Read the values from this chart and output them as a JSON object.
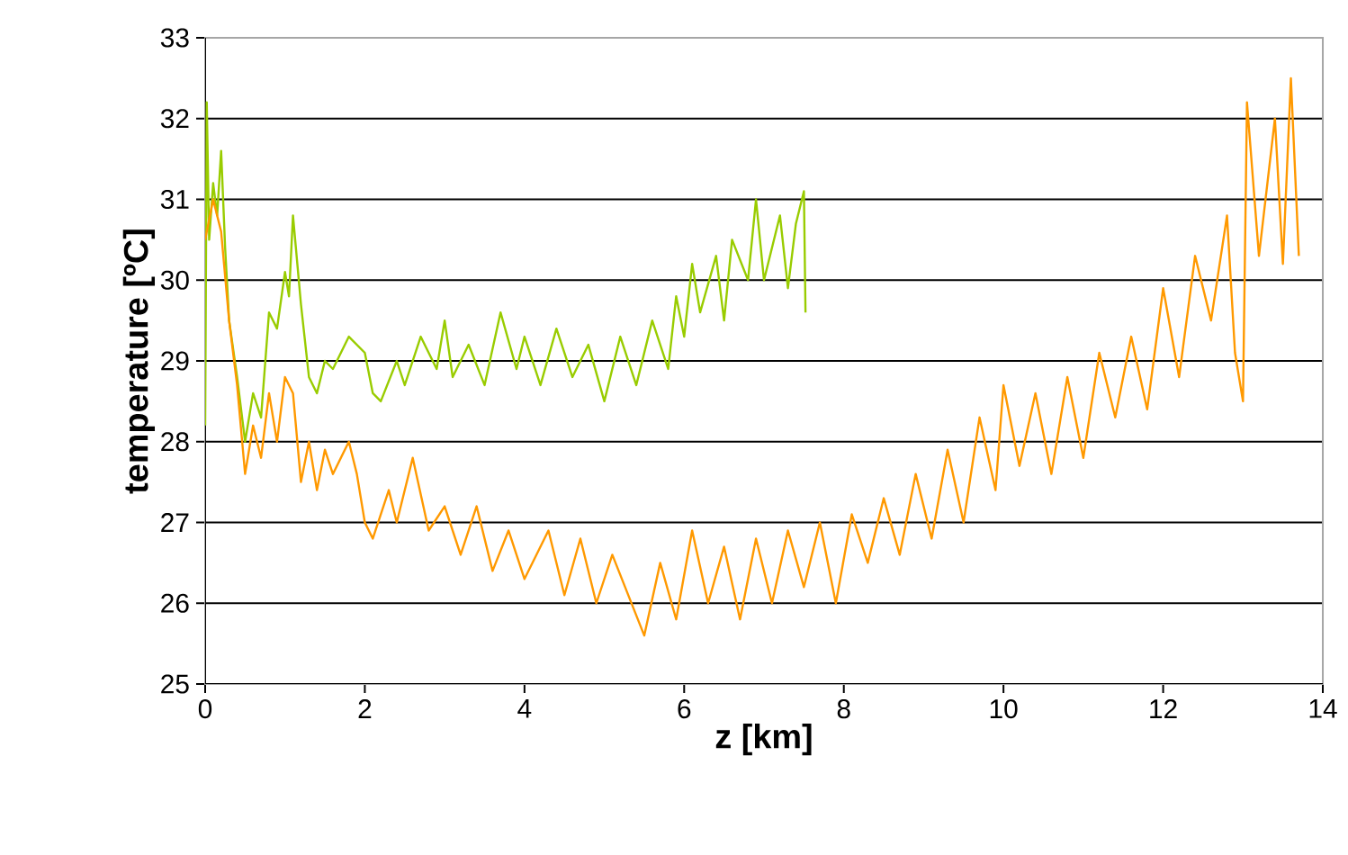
{
  "chart_data": {
    "type": "line",
    "xlabel": "z [km]",
    "ylabel": "temperature [ºC]",
    "xlim": [
      0,
      14
    ],
    "xticks": [
      0,
      2,
      4,
      6,
      8,
      10,
      12,
      14
    ],
    "ylim": [
      25,
      33
    ],
    "yticks": [
      25,
      26,
      27,
      28,
      29,
      30,
      31,
      32,
      33
    ],
    "grid": "y",
    "marker": "none",
    "line_style": "solid",
    "series": [
      {
        "color": "#99cc00",
        "x": [
          0,
          0.02,
          0.05,
          0.1,
          0.15,
          0.2,
          0.25,
          0.3,
          0.4,
          0.5,
          0.6,
          0.7,
          0.8,
          0.9,
          1.0,
          1.05,
          1.1,
          1.2,
          1.3,
          1.4,
          1.5,
          1.6,
          1.8,
          2.0,
          2.1,
          2.2,
          2.4,
          2.5,
          2.7,
          2.9,
          3.0,
          3.1,
          3.3,
          3.5,
          3.7,
          3.9,
          4.0,
          4.2,
          4.4,
          4.6,
          4.8,
          5.0,
          5.2,
          5.4,
          5.6,
          5.8,
          5.9,
          6.0,
          6.1,
          6.2,
          6.4,
          6.5,
          6.6,
          6.8,
          6.9,
          7.0,
          7.2,
          7.3,
          7.4,
          7.5,
          7.52
        ],
        "values": [
          28.2,
          32.2,
          30.5,
          31.2,
          30.8,
          31.6,
          30.4,
          29.5,
          28.8,
          28.0,
          28.6,
          28.3,
          29.6,
          29.4,
          30.1,
          29.8,
          30.8,
          29.7,
          28.8,
          28.6,
          29.0,
          28.9,
          29.3,
          29.1,
          28.6,
          28.5,
          29.0,
          28.7,
          29.3,
          28.9,
          29.5,
          28.8,
          29.2,
          28.7,
          29.6,
          28.9,
          29.3,
          28.7,
          29.4,
          28.8,
          29.2,
          28.5,
          29.3,
          28.7,
          29.5,
          28.9,
          29.8,
          29.3,
          30.2,
          29.6,
          30.3,
          29.5,
          30.5,
          30.0,
          31.0,
          30.0,
          30.8,
          29.9,
          30.7,
          31.1,
          29.6
        ]
      },
      {
        "color": "#ff9900",
        "x": [
          0,
          0.1,
          0.2,
          0.3,
          0.4,
          0.5,
          0.6,
          0.7,
          0.8,
          0.9,
          1.0,
          1.1,
          1.2,
          1.3,
          1.4,
          1.5,
          1.6,
          1.8,
          1.9,
          2.0,
          2.1,
          2.3,
          2.4,
          2.6,
          2.8,
          3.0,
          3.2,
          3.4,
          3.6,
          3.8,
          4.0,
          4.3,
          4.5,
          4.7,
          4.9,
          5.1,
          5.3,
          5.5,
          5.7,
          5.9,
          6.1,
          6.3,
          6.5,
          6.7,
          6.9,
          7.1,
          7.3,
          7.5,
          7.7,
          7.9,
          8.1,
          8.3,
          8.5,
          8.7,
          8.9,
          9.1,
          9.3,
          9.5,
          9.7,
          9.9,
          10.0,
          10.2,
          10.4,
          10.6,
          10.8,
          11.0,
          11.2,
          11.4,
          11.6,
          11.8,
          12.0,
          12.2,
          12.4,
          12.6,
          12.8,
          12.9,
          13.0,
          13.05,
          13.2,
          13.4,
          13.5,
          13.6,
          13.7
        ],
        "values": [
          30.5,
          31.0,
          30.6,
          29.5,
          28.7,
          27.6,
          28.2,
          27.8,
          28.6,
          28.0,
          28.8,
          28.6,
          27.5,
          28.0,
          27.4,
          27.9,
          27.6,
          28.0,
          27.6,
          27.0,
          26.8,
          27.4,
          27.0,
          27.8,
          26.9,
          27.2,
          26.6,
          27.2,
          26.4,
          26.9,
          26.3,
          26.9,
          26.1,
          26.8,
          26.0,
          26.6,
          26.1,
          25.6,
          26.5,
          25.8,
          26.9,
          26.0,
          26.7,
          25.8,
          26.8,
          26.0,
          26.9,
          26.2,
          27.0,
          26.0,
          27.1,
          26.5,
          27.3,
          26.6,
          27.6,
          26.8,
          27.9,
          27.0,
          28.3,
          27.4,
          28.7,
          27.7,
          28.6,
          27.6,
          28.8,
          27.8,
          29.1,
          28.3,
          29.3,
          28.4,
          29.9,
          28.8,
          30.3,
          29.5,
          30.8,
          29.1,
          28.5,
          32.2,
          30.3,
          32.0,
          30.2,
          32.5,
          30.3
        ]
      }
    ]
  }
}
